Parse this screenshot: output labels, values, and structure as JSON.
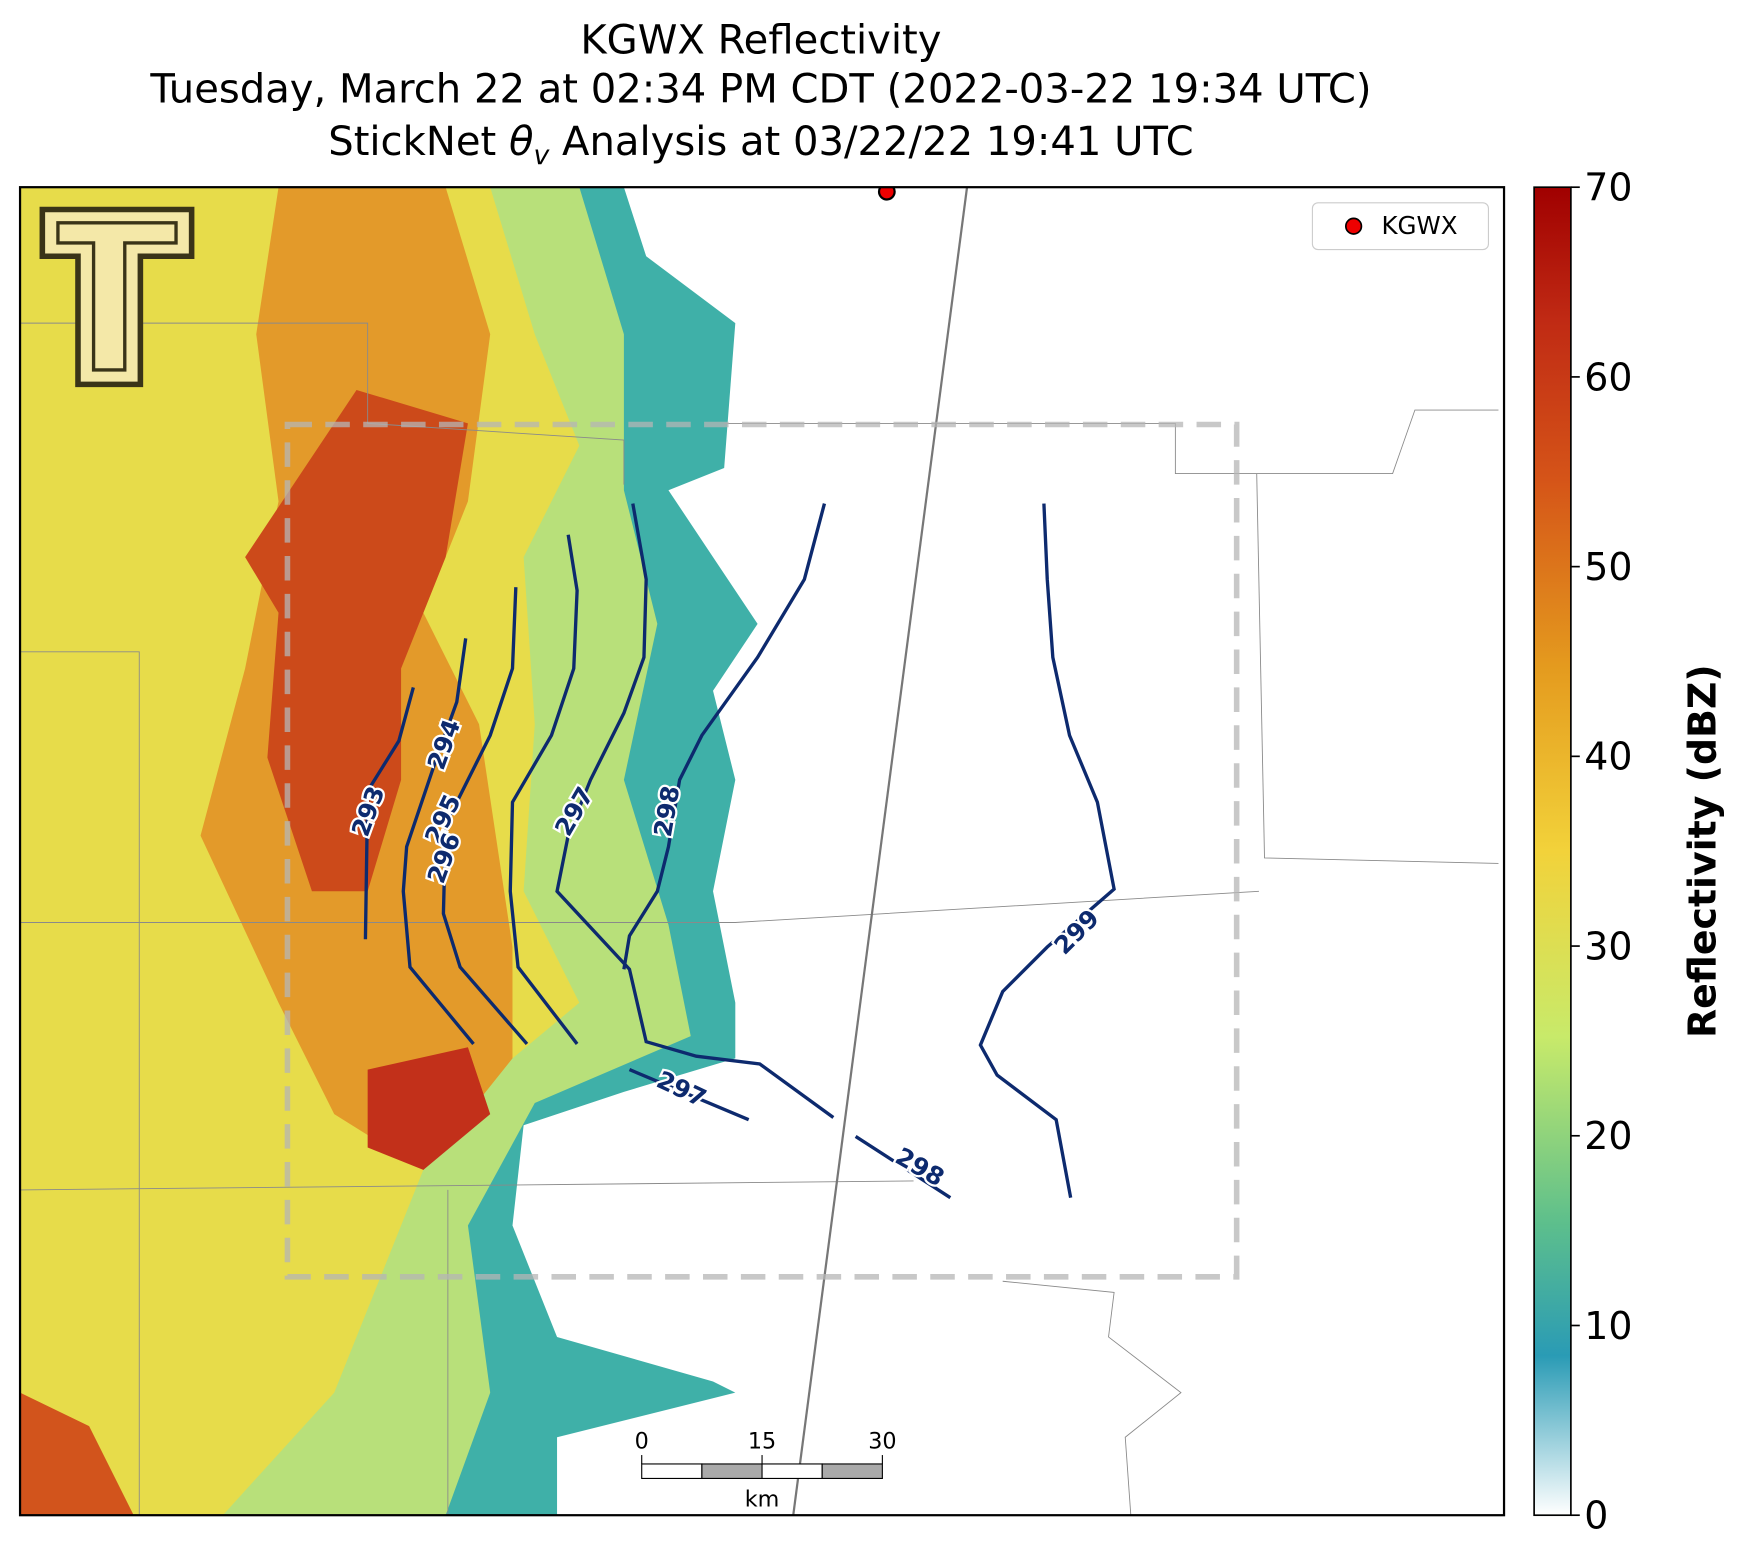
{
  "title": {
    "line1": "KGWX Reflectivity",
    "line2": "Tuesday, March 22 at 02:34 PM CDT (2022-03-22 19:34 UTC)",
    "line3": {
      "prefix": "StickNet ",
      "symbol": "θ",
      "subscript": "v",
      "suffix": " Analysis at 03/22/22 19:41 UTC"
    }
  },
  "legend": {
    "label": "KGWX"
  },
  "colorbar": {
    "label": "Reflectivity (dBZ)",
    "lim": [
      0,
      70
    ],
    "ticks": [
      0,
      10,
      20,
      30,
      40,
      50,
      60,
      70
    ]
  },
  "contour_labels": [
    293,
    294,
    295,
    296,
    297,
    298,
    297,
    298,
    299
  ],
  "scale_bar": {
    "ticks": [
      0,
      15,
      30
    ],
    "unit": "km"
  }
}
